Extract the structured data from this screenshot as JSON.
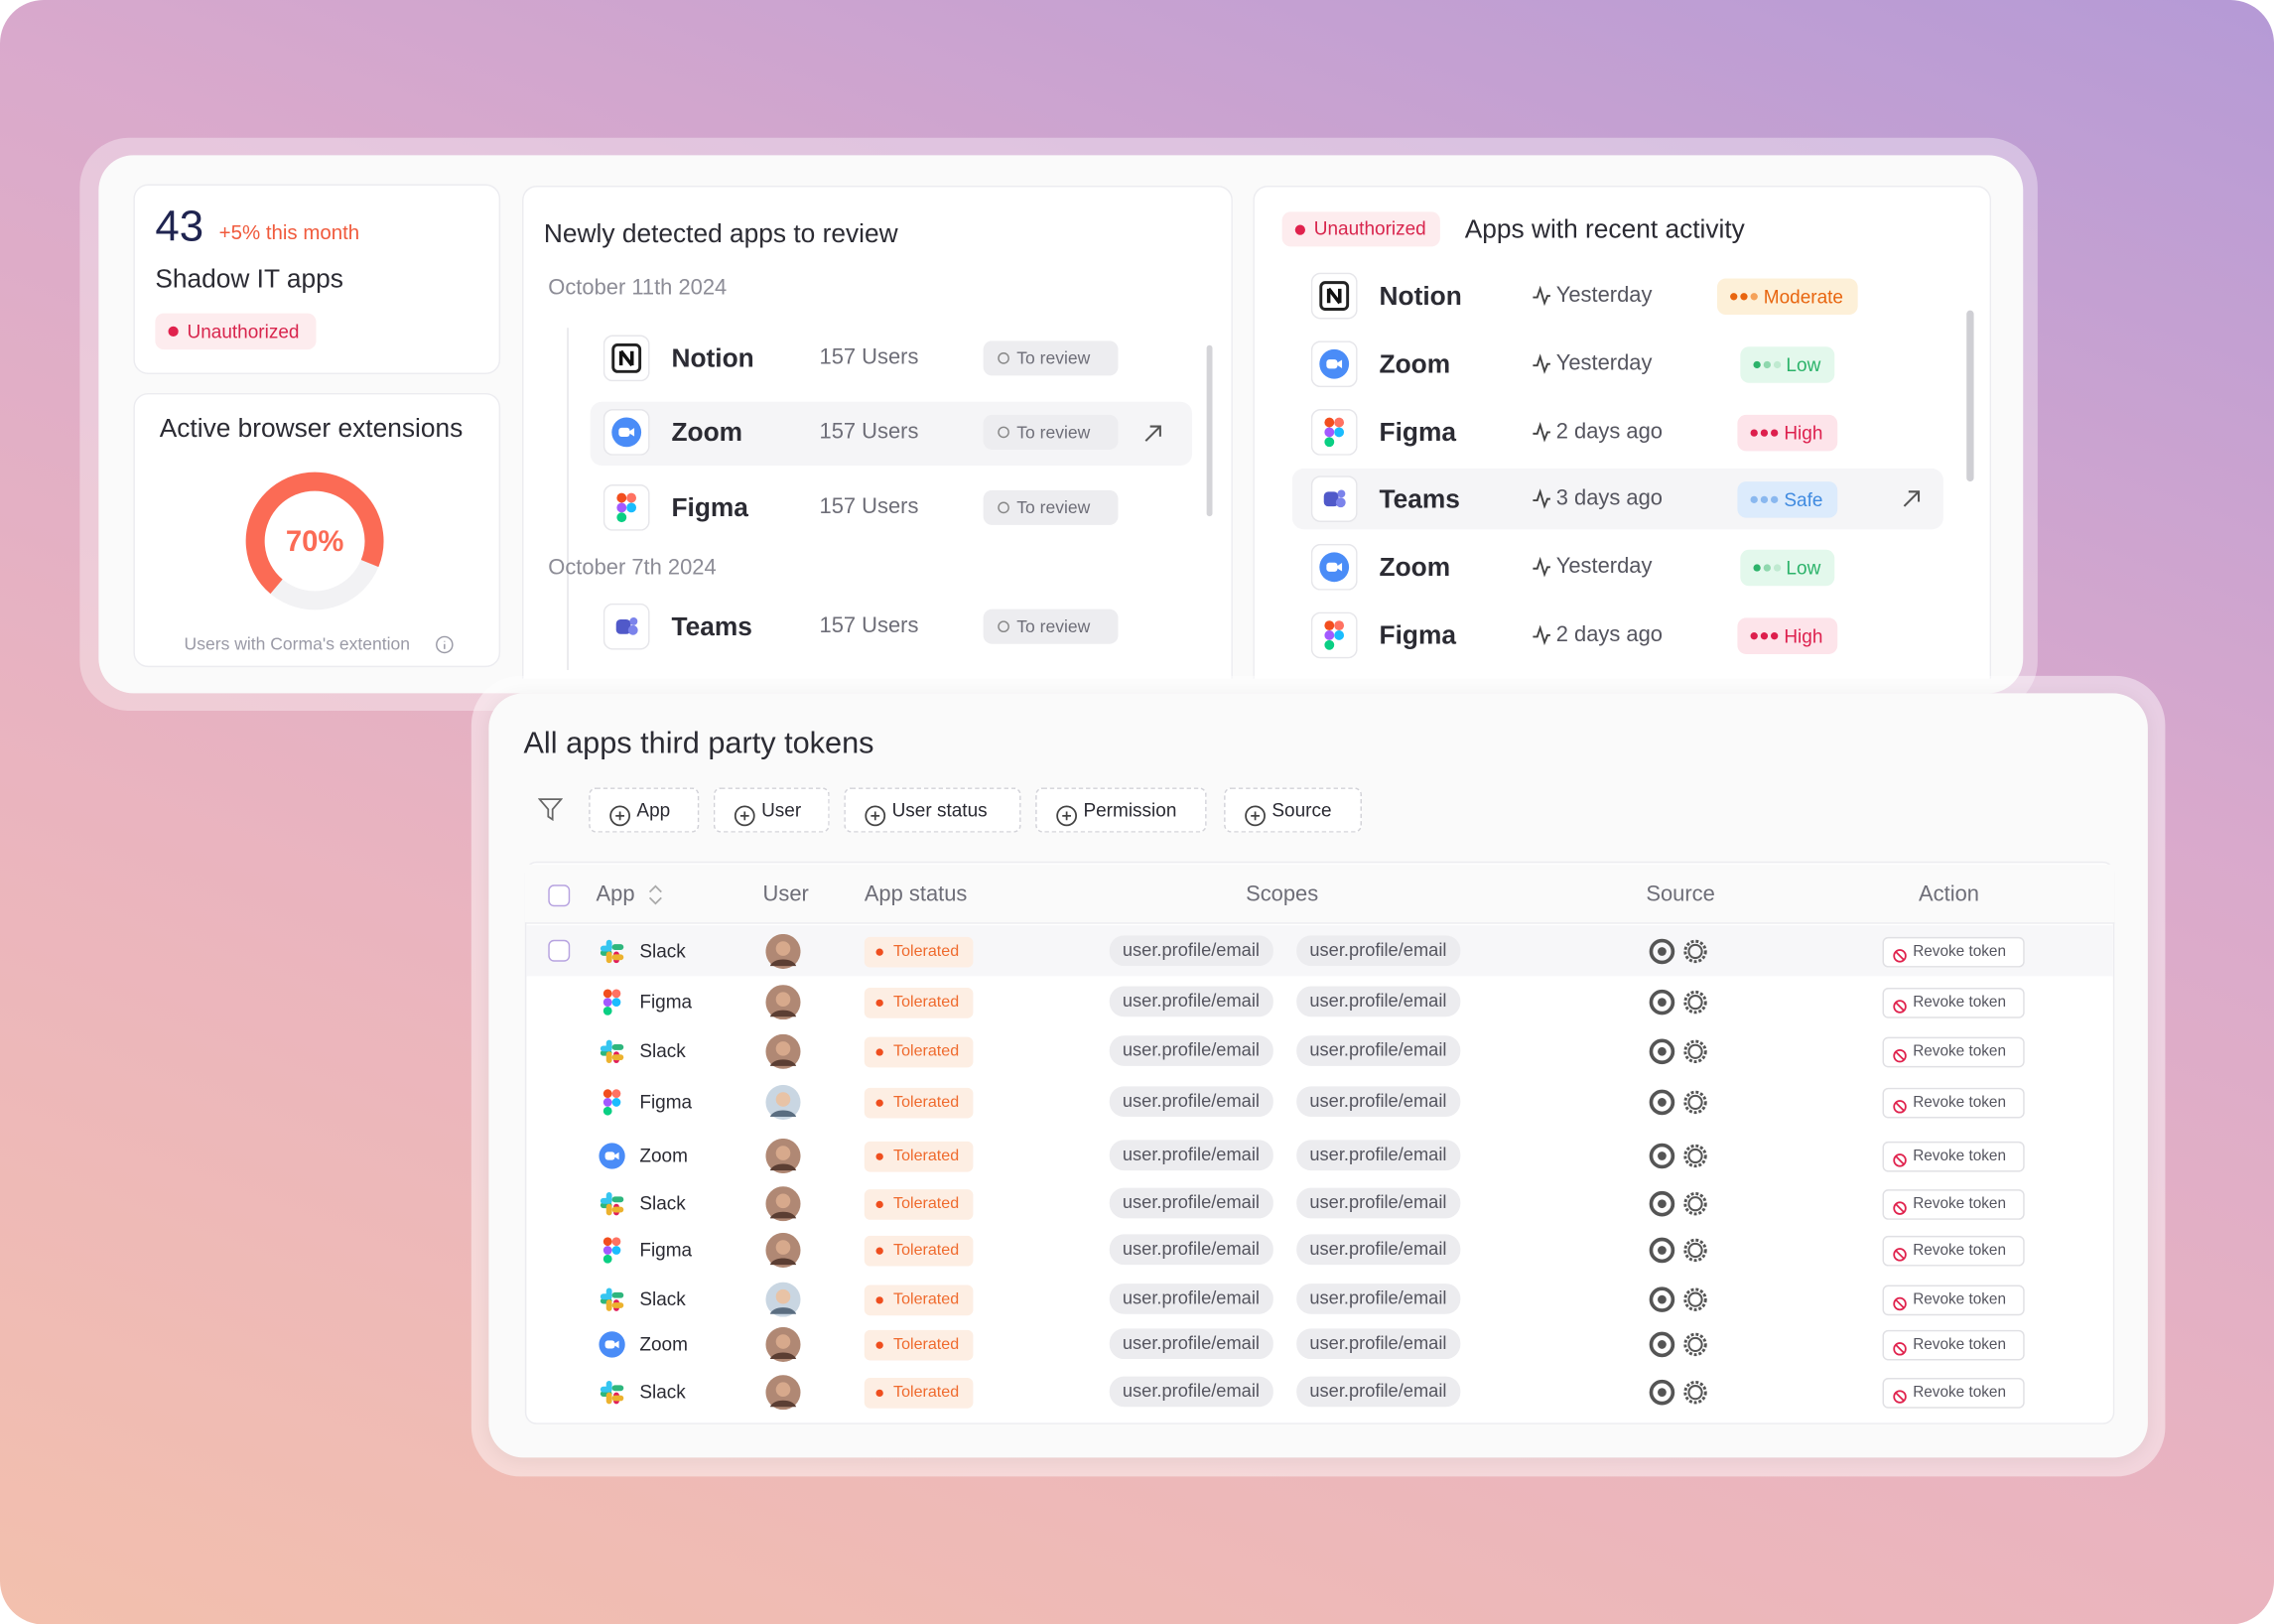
{
  "summary": {
    "count": "43",
    "change": "+5% this month",
    "label": "Shadow IT apps",
    "badge": "Unauthorized"
  },
  "extensions": {
    "title": "Active browser extensions",
    "percent": "70%",
    "caption": "Users  with Corma's extention"
  },
  "review": {
    "title": "Newly detected apps to review",
    "groups": [
      {
        "date": "October 11th 2024",
        "rows": [
          {
            "app": "Notion",
            "users": "157 Users",
            "status": "To review"
          },
          {
            "app": "Zoom",
            "users": "157 Users",
            "status": "To review"
          },
          {
            "app": "Figma",
            "users": "157 Users",
            "status": "To review"
          }
        ]
      },
      {
        "date": "October 7th 2024",
        "rows": [
          {
            "app": "Teams",
            "users": "157 Users",
            "status": "To review"
          }
        ]
      }
    ]
  },
  "activity": {
    "badge": "Unauthorized",
    "title": "Apps with recent activity",
    "rows": [
      {
        "app": "Notion",
        "time": "Yesterday",
        "risk": "Moderate"
      },
      {
        "app": "Zoom",
        "time": "Yesterday",
        "risk": "Low"
      },
      {
        "app": "Figma",
        "time": "2 days ago",
        "risk": "High"
      },
      {
        "app": "Teams",
        "time": "3 days ago",
        "risk": "Safe"
      },
      {
        "app": "Zoom",
        "time": "Yesterday",
        "risk": "Low"
      },
      {
        "app": "Figma",
        "time": "2 days ago",
        "risk": "High"
      }
    ]
  },
  "tokens": {
    "title": "All apps third party tokens",
    "filters": [
      "App",
      "User",
      "User status",
      "Permission",
      "Source"
    ],
    "columns": [
      "App",
      "User",
      "App status",
      "Scopes",
      "Source",
      "Action"
    ],
    "rows": [
      {
        "app": "Slack",
        "status": "Tolerated",
        "scopes": [
          "user.profile/email",
          "user.profile/email"
        ],
        "action": "Revoke token"
      },
      {
        "app": "Figma",
        "status": "Tolerated",
        "scopes": [
          "user.profile/email",
          "user.profile/email"
        ],
        "action": "Revoke token"
      },
      {
        "app": "Slack",
        "status": "Tolerated",
        "scopes": [
          "user.profile/email",
          "user.profile/email"
        ],
        "action": "Revoke token"
      },
      {
        "app": "Figma",
        "status": "Tolerated",
        "scopes": [
          "user.profile/email",
          "user.profile/email"
        ],
        "action": "Revoke token"
      },
      {
        "app": "Zoom",
        "status": "Tolerated",
        "scopes": [
          "user.profile/email",
          "user.profile/email"
        ],
        "action": "Revoke token"
      },
      {
        "app": "Slack",
        "status": "Tolerated",
        "scopes": [
          "user.profile/email",
          "user.profile/email"
        ],
        "action": "Revoke token"
      },
      {
        "app": "Figma",
        "status": "Tolerated",
        "scopes": [
          "user.profile/email",
          "user.profile/email"
        ],
        "action": "Revoke token"
      },
      {
        "app": "Slack",
        "status": "Tolerated",
        "scopes": [
          "user.profile/email",
          "user.profile/email"
        ],
        "action": "Revoke token"
      },
      {
        "app": "Zoom",
        "status": "Tolerated",
        "scopes": [
          "user.profile/email",
          "user.profile/email"
        ],
        "action": "Revoke token"
      },
      {
        "app": "Slack",
        "status": "Tolerated",
        "scopes": [
          "user.profile/email",
          "user.profile/email"
        ],
        "action": "Revoke token"
      }
    ]
  }
}
